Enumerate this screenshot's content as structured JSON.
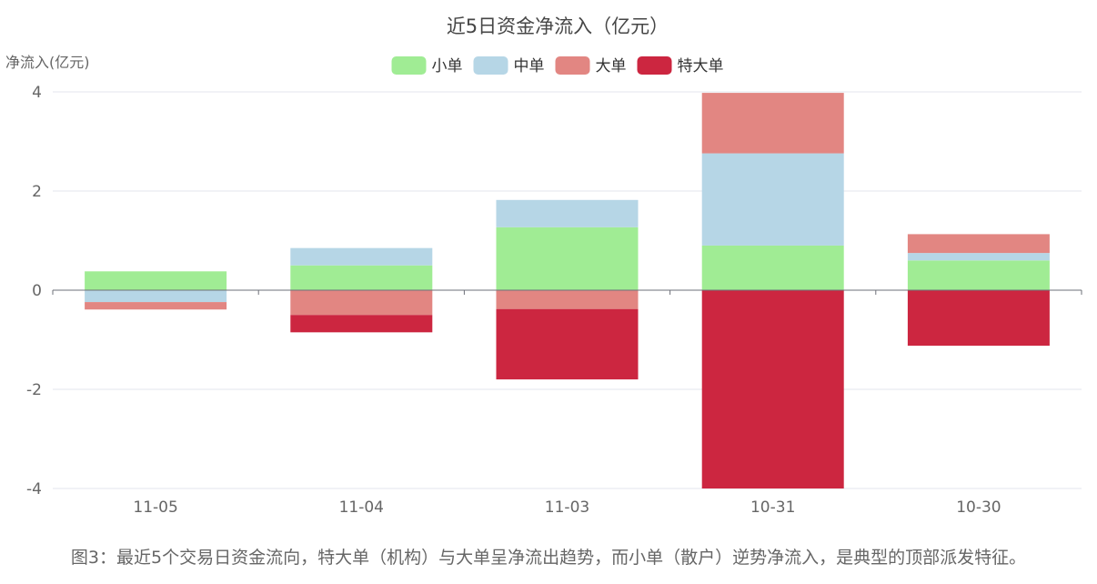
{
  "chart_data": {
    "type": "bar",
    "stacked": true,
    "title": "近5日资金净流入（亿元）",
    "ylabel": "净流入(亿元)",
    "xlabel": "",
    "ylim": [
      -4,
      4
    ],
    "yticks": [
      -4,
      -2,
      0,
      2,
      4
    ],
    "grid": true,
    "legend": "top-center",
    "categories": [
      "11-05",
      "11-04",
      "11-03",
      "10-31",
      "10-30"
    ],
    "series": [
      {
        "name": "小单",
        "color": "#a0ec94",
        "values": [
          0.38,
          0.5,
          1.27,
          0.9,
          0.6
        ]
      },
      {
        "name": "中单",
        "color": "#b6d6e6",
        "values": [
          -0.24,
          0.35,
          0.55,
          1.86,
          0.15
        ]
      },
      {
        "name": "大单",
        "color": "#e28682",
        "values": [
          -0.15,
          -0.5,
          -0.38,
          1.22,
          0.38
        ]
      },
      {
        "name": "特大单",
        "color": "#cc2640",
        "values": [
          0.0,
          -0.35,
          -1.42,
          -4.0,
          -1.12
        ]
      }
    ]
  },
  "caption": "图3：最近5个交易日资金流向，特大单（机构）与大单呈净流出趋势，而小单（散户）逆势净流入，是典型的顶部派发特征。"
}
